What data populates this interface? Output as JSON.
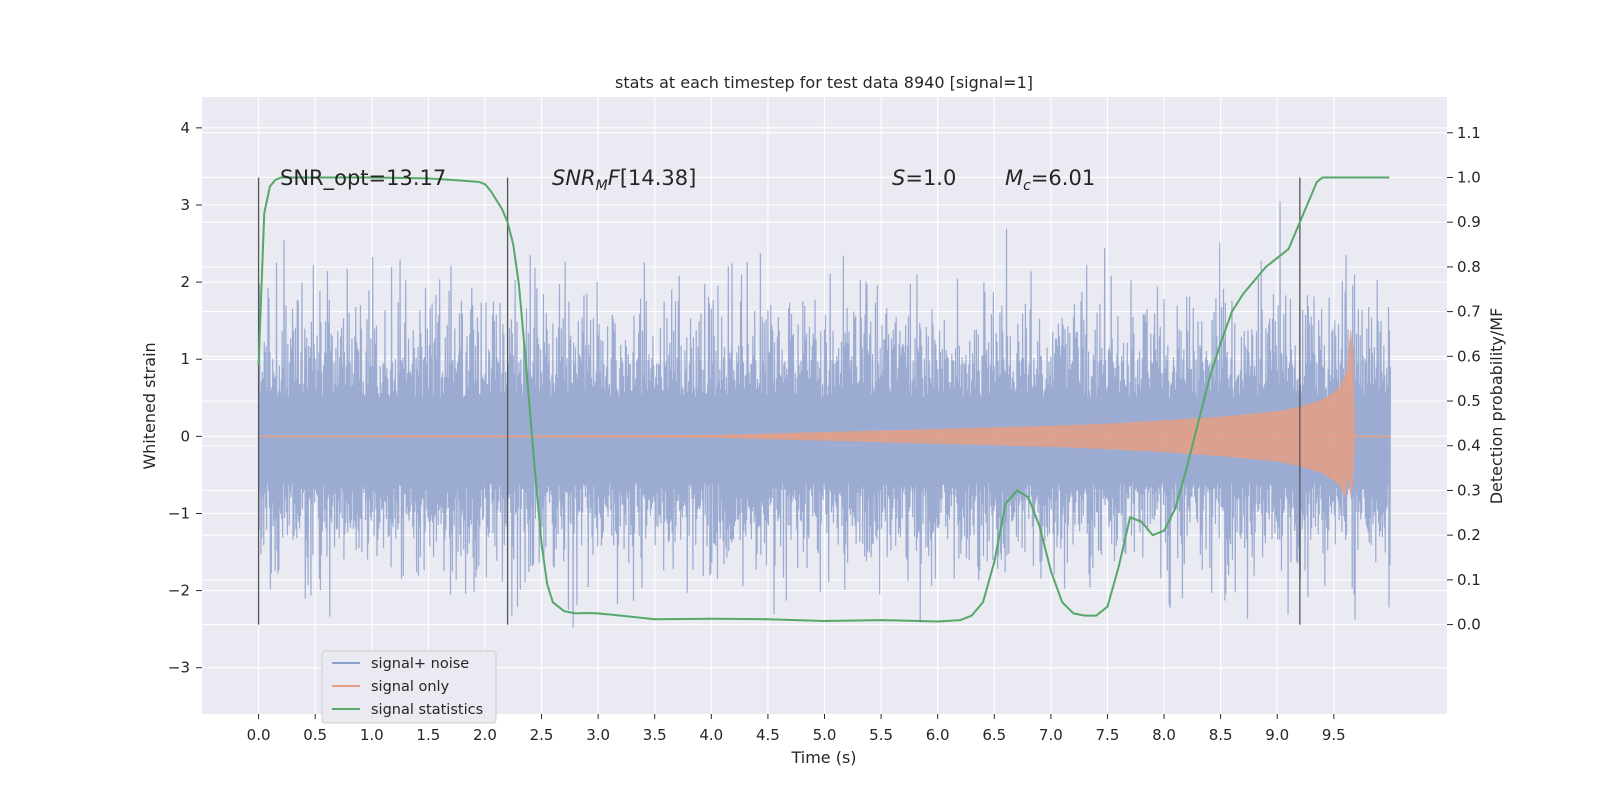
{
  "chart_data": {
    "type": "line",
    "title": "stats at each timestep for test data 8940 [signal=1]",
    "xlabel": "Time (s)",
    "ylabel": "Whitened strain",
    "ylabel_right": "Detection probability/MF",
    "xlim": [
      -0.5,
      10.5
    ],
    "ylim": [
      -3.6,
      4.4
    ],
    "ylim_right": [
      -0.2,
      1.18
    ],
    "xticks": [
      "0.0",
      "0.5",
      "1.0",
      "1.5",
      "2.0",
      "2.5",
      "3.0",
      "3.5",
      "4.0",
      "4.5",
      "5.0",
      "5.5",
      "6.0",
      "6.5",
      "7.0",
      "7.5",
      "8.0",
      "8.5",
      "9.0",
      "9.5"
    ],
    "yticks": [
      -3,
      -2,
      -1,
      0,
      1,
      2,
      3,
      4
    ],
    "yticks_right": [
      0.0,
      0.1,
      0.2,
      0.3,
      0.4,
      0.5,
      0.6,
      0.7,
      0.8,
      0.9,
      1.0,
      1.1
    ],
    "grid": true,
    "legend_position": "lower-left",
    "annotations": {
      "snr_opt": "SNR_opt=13.17",
      "snr_mf": "[14.38]",
      "s_value": "=1.0",
      "mc_value": "=6.01"
    },
    "vertical_lines": [
      0.0,
      2.2,
      9.2
    ],
    "series": [
      {
        "name": "signal+ noise",
        "color": "#8da0cb",
        "description_range": {
          "t_start": 0.0,
          "t_end": 10.0,
          "typical_min": -2.0,
          "typical_max": 2.6
        }
      },
      {
        "name": "signal only",
        "color": "#e5a086",
        "envelope": {
          "t": [
            0.0,
            4.0,
            5.0,
            6.0,
            7.0,
            7.5,
            8.0,
            8.5,
            9.0,
            9.2,
            9.4,
            9.55,
            9.62,
            9.66,
            9.68,
            10.0
          ],
          "amp": [
            0.0,
            0.01,
            0.05,
            0.09,
            0.13,
            0.16,
            0.2,
            0.25,
            0.32,
            0.38,
            0.47,
            0.62,
            0.85,
            1.55,
            0.0,
            0.0
          ]
        }
      },
      {
        "name": "signal statistics",
        "color": "#55a868",
        "x": [
          0.0,
          0.05,
          0.1,
          0.15,
          0.2,
          0.3,
          0.5,
          1.0,
          1.5,
          1.8,
          1.95,
          2.0,
          2.05,
          2.1,
          2.15,
          2.2,
          2.25,
          2.3,
          2.35,
          2.4,
          2.45,
          2.5,
          2.55,
          2.6,
          2.7,
          2.8,
          2.9,
          3.0,
          3.2,
          3.5,
          4.0,
          4.5,
          5.0,
          5.5,
          6.0,
          6.2,
          6.3,
          6.4,
          6.5,
          6.6,
          6.7,
          6.8,
          6.9,
          7.0,
          7.1,
          7.2,
          7.3,
          7.4,
          7.5,
          7.6,
          7.7,
          7.8,
          7.9,
          8.0,
          8.1,
          8.2,
          8.3,
          8.4,
          8.5,
          8.6,
          8.7,
          8.8,
          8.9,
          9.0,
          9.1,
          9.2,
          9.3,
          9.35,
          9.4,
          9.5,
          9.6,
          9.8,
          9.99
        ],
        "y": [
          0.58,
          0.92,
          0.98,
          0.995,
          1.0,
          1.0,
          1.0,
          1.0,
          0.998,
          0.993,
          0.99,
          0.985,
          0.97,
          0.95,
          0.93,
          0.9,
          0.85,
          0.76,
          0.62,
          0.47,
          0.32,
          0.18,
          0.09,
          0.05,
          0.03,
          0.025,
          0.026,
          0.025,
          0.02,
          0.012,
          0.013,
          0.012,
          0.008,
          0.01,
          0.007,
          0.01,
          0.02,
          0.05,
          0.14,
          0.27,
          0.3,
          0.285,
          0.22,
          0.12,
          0.05,
          0.025,
          0.02,
          0.02,
          0.04,
          0.13,
          0.24,
          0.23,
          0.2,
          0.21,
          0.26,
          0.35,
          0.45,
          0.55,
          0.63,
          0.7,
          0.74,
          0.77,
          0.8,
          0.82,
          0.84,
          0.9,
          0.96,
          0.99,
          1.0,
          1.0,
          1.0,
          1.0,
          1.0
        ]
      }
    ]
  }
}
